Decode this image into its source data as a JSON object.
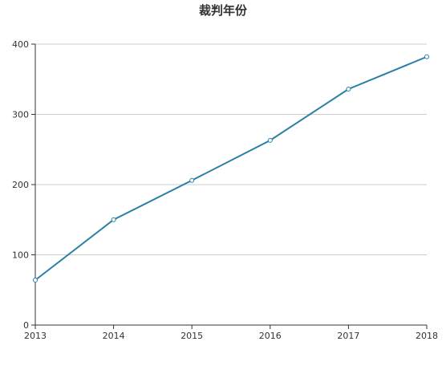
{
  "chart_data": {
    "type": "line",
    "title": "裁判年份",
    "xlabel": "",
    "ylabel": "",
    "x": [
      "2013",
      "2014",
      "2015",
      "2016",
      "2017",
      "2018"
    ],
    "series": [
      {
        "values": [
          64,
          150,
          206,
          263,
          336,
          382
        ]
      }
    ],
    "ylim": [
      0,
      400
    ],
    "yticks": [
      0,
      100,
      200,
      300,
      400
    ],
    "grid": true,
    "legend": "none",
    "colors": {
      "line": "#2a7fa6",
      "grid": "#cccccc",
      "axis": "#333333",
      "marker_fill": "#ffffff"
    }
  }
}
